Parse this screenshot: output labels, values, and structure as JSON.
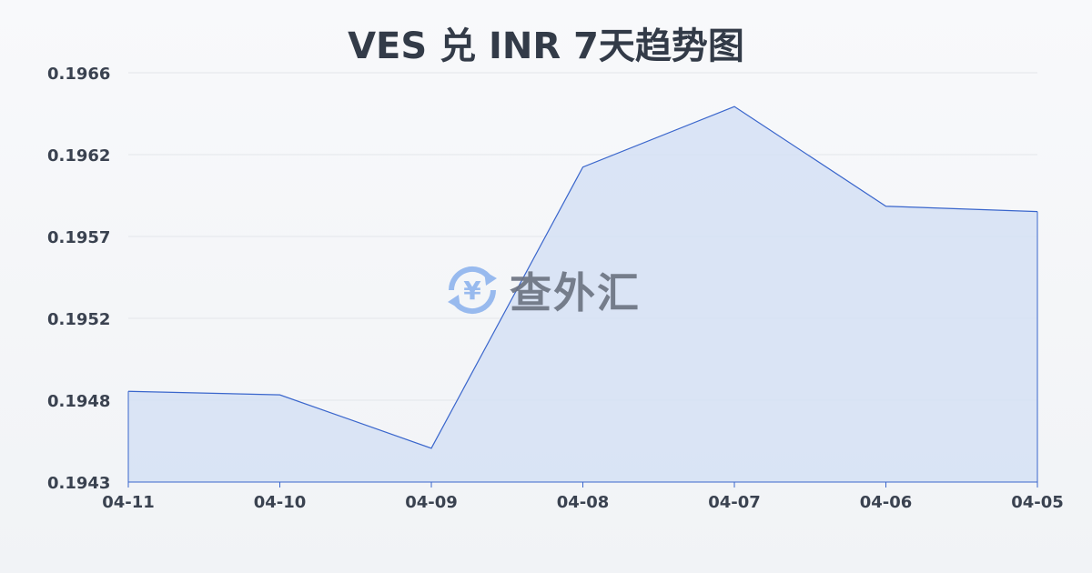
{
  "chart_data": {
    "type": "area",
    "title": "VES 兑 INR 7天趋势图",
    "xlabel": "",
    "ylabel": "",
    "categories": [
      "04-11",
      "04-10",
      "04-09",
      "04-08",
      "04-07",
      "04-06",
      "04-05"
    ],
    "values": [
      0.19481,
      0.19479,
      0.19449,
      0.19607,
      0.19641,
      0.19585,
      0.19582
    ],
    "ylim": [
      0.1943,
      0.1966
    ],
    "yticks": [
      "0.1966",
      "0.1962",
      "0.1957",
      "0.1952",
      "0.1948",
      "0.1943"
    ],
    "grid": true,
    "colors": {
      "line": "#3a66cc",
      "fill": "#d5e0f5"
    }
  },
  "watermark": {
    "text": "查外汇",
    "icon": "yen-exchange-icon"
  }
}
